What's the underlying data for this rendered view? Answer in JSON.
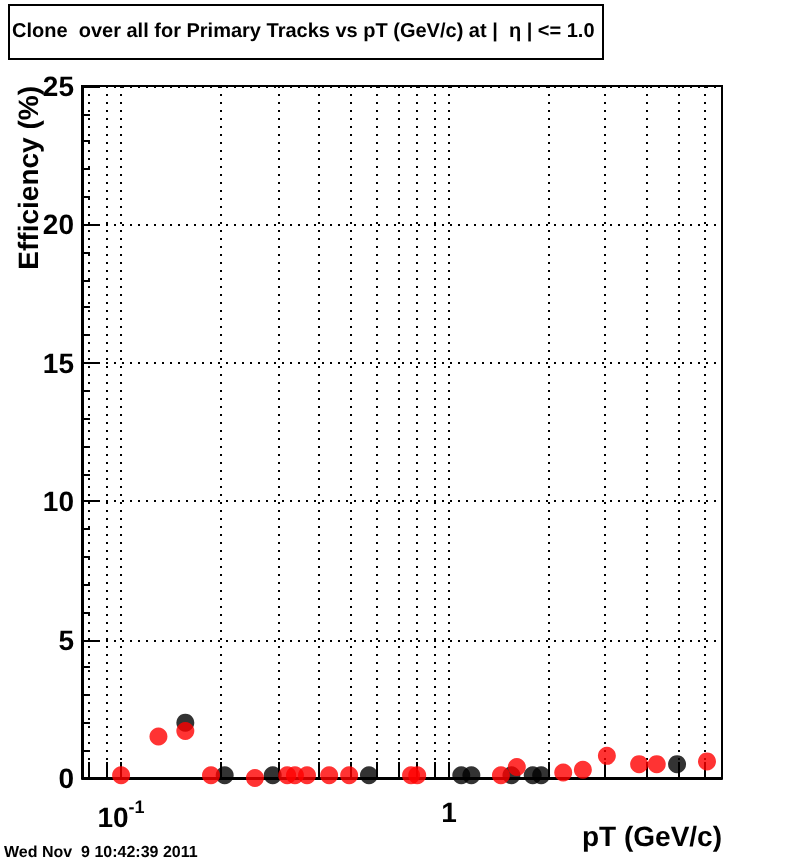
{
  "chart_data": {
    "type": "scatter",
    "title": "Clone  over all for Primary Tracks vs pT (GeV/c) at |  η | <= 1.0",
    "xlabel": "pT (GeV/c)",
    "ylabel": "Efficiency (%)",
    "annotations": [
      "Wed Nov  9 10:42:39 2011"
    ],
    "log": "x",
    "xlim": [
      0.076,
      6.8
    ],
    "ylim": [
      0,
      25
    ],
    "xticks": [
      {
        "value": 0.08,
        "label": null
      },
      {
        "value": 0.09,
        "label": null
      },
      {
        "value": 0.1,
        "label": "10$^{-1}$"
      },
      {
        "value": 0.2,
        "label": null
      },
      {
        "value": 0.3,
        "label": null
      },
      {
        "value": 0.4,
        "label": null
      },
      {
        "value": 0.5,
        "label": null
      },
      {
        "value": 0.6,
        "label": null
      },
      {
        "value": 0.7,
        "label": null
      },
      {
        "value": 0.8,
        "label": null
      },
      {
        "value": 0.9,
        "label": null
      },
      {
        "value": 1,
        "label": "1"
      },
      {
        "value": 2,
        "label": null
      },
      {
        "value": 3,
        "label": null
      },
      {
        "value": 4,
        "label": null
      },
      {
        "value": 5,
        "label": null
      },
      {
        "value": 6,
        "label": null
      }
    ],
    "yticks": [
      0,
      5,
      10,
      15,
      20,
      25
    ],
    "grid": true,
    "marker": "circle",
    "series": [
      {
        "color": "#000000",
        "x": [
          0.157,
          0.207,
          0.29,
          0.57,
          1.09,
          1.17,
          1.55,
          1.8,
          1.91,
          4.96
        ],
        "values": [
          2.0,
          0.1,
          0.1,
          0.1,
          0.1,
          0.1,
          0.1,
          0.1,
          0.1,
          0.5
        ]
      },
      {
        "color": "#ff0000",
        "x": [
          0.1,
          0.13,
          0.157,
          0.188,
          0.256,
          0.321,
          0.339,
          0.369,
          0.431,
          0.496,
          0.766,
          0.8,
          1.44,
          1.61,
          2.23,
          2.56,
          3.03,
          3.8,
          4.3,
          6.12
        ],
        "values": [
          0.1,
          1.5,
          1.7,
          0.1,
          0,
          0.1,
          0.1,
          0.1,
          0.1,
          0.1,
          0.1,
          0.1,
          0.1,
          0.4,
          0.2,
          0.3,
          0.8,
          0.5,
          0.5,
          0.6
        ]
      }
    ]
  }
}
